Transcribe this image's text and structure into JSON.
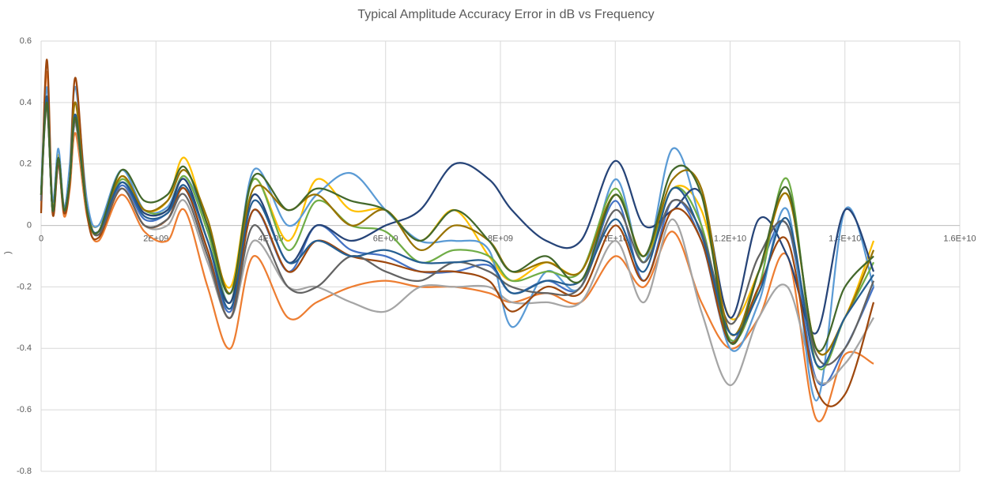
{
  "chart_data": {
    "type": "line",
    "title": "Typical Amplitude Accuracy Error in dB vs Frequency",
    "y_label": ")",
    "x": [
      0,
      100000000,
      200000000,
      300000000,
      400000000,
      500000000,
      600000000,
      800000000,
      1000000000,
      1400000000,
      1800000000,
      2200000000,
      2500000000,
      2900000000,
      3300000000,
      3700000000,
      4300000000,
      4800000000,
      5400000000,
      6000000000,
      6600000000,
      7200000000,
      7800000000,
      8200000000,
      8800000000,
      9400000000,
      10000000000,
      10500000000,
      11000000000,
      11500000000,
      12000000000,
      12500000000,
      13000000000,
      13500000000,
      14000000000,
      14500000000
    ],
    "xlim": [
      0,
      16000000000
    ],
    "xticks": [
      0,
      {
        "value": 2000000000,
        "label": "2E+09"
      },
      {
        "value": 4000000000,
        "label": "4E+09"
      },
      {
        "value": 6000000000,
        "label": "6E+09"
      },
      {
        "value": 8000000000,
        "label": "8E+09"
      },
      {
        "value": 10000000000,
        "label": "1E+10"
      },
      {
        "value": 12000000000,
        "label": "1.2E+10"
      },
      {
        "value": 14000000000,
        "label": "1.4E+10"
      },
      {
        "value": 16000000000,
        "label": "1.6E+10"
      }
    ],
    "ylim": [
      -0.8,
      0.6
    ],
    "yticks": [
      0.6,
      0.4,
      0.2,
      0,
      -0.2,
      -0.4,
      -0.6,
      -0.8
    ],
    "grid": true,
    "series": [
      {
        "color": "#4472c4",
        "values": [
          0.08,
          0.42,
          0.06,
          0.2,
          0.04,
          0.14,
          0.33,
          0.06,
          -0.03,
          0.13,
          0.02,
          0.04,
          0.12,
          -0.08,
          -0.28,
          0.05,
          -0.15,
          0.0,
          -0.08,
          -0.1,
          -0.15,
          -0.15,
          -0.13,
          -0.22,
          -0.18,
          -0.2,
          0.08,
          -0.18,
          0.08,
          -0.05,
          -0.38,
          -0.15,
          0.0,
          -0.5,
          -0.4,
          -0.2
        ]
      },
      {
        "color": "#ed7d31",
        "values": [
          0.05,
          0.5,
          0.04,
          0.2,
          0.03,
          0.12,
          0.3,
          0.03,
          -0.05,
          0.1,
          -0.02,
          -0.05,
          0.05,
          -0.2,
          -0.4,
          -0.1,
          -0.3,
          -0.25,
          -0.2,
          -0.18,
          -0.2,
          -0.2,
          -0.22,
          -0.25,
          -0.22,
          -0.25,
          -0.1,
          -0.2,
          -0.02,
          -0.25,
          -0.4,
          -0.3,
          -0.1,
          -0.63,
          -0.42,
          -0.45
        ]
      },
      {
        "color": "#a5a5a5",
        "values": [
          0.1,
          0.38,
          0.05,
          0.2,
          0.05,
          0.15,
          0.33,
          0.05,
          -0.03,
          0.12,
          0.0,
          0.0,
          0.08,
          -0.12,
          -0.3,
          -0.05,
          -0.2,
          -0.2,
          -0.25,
          -0.28,
          -0.2,
          -0.2,
          -0.2,
          -0.25,
          -0.25,
          -0.25,
          -0.05,
          -0.25,
          0.02,
          -0.28,
          -0.52,
          -0.3,
          -0.2,
          -0.5,
          -0.45,
          -0.3
        ]
      },
      {
        "color": "#ffc000",
        "values": [
          0.1,
          0.4,
          0.06,
          0.23,
          0.06,
          0.16,
          0.36,
          0.06,
          0.0,
          0.16,
          0.05,
          0.08,
          0.22,
          0.0,
          -0.2,
          0.15,
          -0.05,
          0.15,
          0.05,
          0.05,
          -0.05,
          0.05,
          -0.1,
          -0.18,
          -0.12,
          -0.15,
          0.1,
          -0.1,
          0.12,
          0.05,
          -0.3,
          -0.15,
          0.1,
          -0.4,
          -0.3,
          -0.05
        ]
      },
      {
        "color": "#5b9bd5",
        "values": [
          0.12,
          0.45,
          0.08,
          0.25,
          0.06,
          0.2,
          0.45,
          0.08,
          0.0,
          0.18,
          0.05,
          0.06,
          0.16,
          0.0,
          -0.25,
          0.18,
          0.0,
          0.1,
          0.17,
          0.05,
          -0.05,
          -0.05,
          -0.08,
          -0.33,
          -0.15,
          -0.2,
          0.15,
          -0.12,
          0.25,
          0.0,
          -0.4,
          -0.25,
          0.05,
          -0.57,
          0.05,
          -0.2
        ]
      },
      {
        "color": "#70ad47",
        "values": [
          0.1,
          0.4,
          0.05,
          0.22,
          0.05,
          0.15,
          0.35,
          0.05,
          -0.02,
          0.15,
          0.05,
          0.05,
          0.16,
          -0.02,
          -0.25,
          0.15,
          -0.08,
          0.08,
          0.0,
          -0.02,
          -0.12,
          -0.08,
          -0.1,
          -0.18,
          -0.15,
          -0.15,
          0.12,
          -0.12,
          0.12,
          0.0,
          -0.37,
          -0.2,
          0.15,
          -0.45,
          -0.3,
          -0.12
        ]
      },
      {
        "color": "#264478",
        "values": [
          0.1,
          0.4,
          0.05,
          0.22,
          0.05,
          0.15,
          0.35,
          0.05,
          -0.02,
          0.14,
          0.04,
          0.05,
          0.15,
          -0.05,
          -0.25,
          0.1,
          -0.12,
          0.0,
          -0.05,
          0.0,
          0.05,
          0.2,
          0.15,
          0.05,
          -0.05,
          -0.05,
          0.21,
          0.0,
          0.05,
          0.1,
          -0.3,
          0.02,
          -0.1,
          -0.35,
          0.05,
          -0.15
        ]
      },
      {
        "color": "#9e480e",
        "values": [
          0.04,
          0.54,
          0.04,
          0.2,
          0.04,
          0.14,
          0.48,
          0.04,
          -0.04,
          0.12,
          0.0,
          0.02,
          0.12,
          -0.08,
          -0.3,
          0.05,
          -0.15,
          -0.05,
          -0.1,
          -0.12,
          -0.15,
          -0.15,
          -0.18,
          -0.28,
          -0.2,
          -0.22,
          0.0,
          -0.18,
          0.05,
          -0.05,
          -0.38,
          -0.2,
          -0.05,
          -0.53,
          -0.55,
          -0.25
        ]
      },
      {
        "color": "#636363",
        "values": [
          0.08,
          0.4,
          0.05,
          0.21,
          0.05,
          0.15,
          0.34,
          0.05,
          -0.03,
          0.12,
          0.0,
          0.02,
          0.1,
          -0.1,
          -0.3,
          0.0,
          -0.2,
          -0.2,
          -0.1,
          -0.15,
          -0.18,
          -0.12,
          -0.15,
          -0.2,
          -0.22,
          -0.2,
          0.05,
          -0.12,
          0.08,
          -0.02,
          -0.32,
          -0.1,
          0.0,
          -0.42,
          -0.4,
          -0.18
        ]
      },
      {
        "color": "#997300",
        "values": [
          0.1,
          0.42,
          0.05,
          0.22,
          0.05,
          0.15,
          0.4,
          0.05,
          -0.02,
          0.16,
          0.05,
          0.08,
          0.18,
          0.02,
          -0.22,
          0.12,
          0.05,
          0.1,
          0.0,
          0.05,
          -0.08,
          0.0,
          -0.05,
          -0.15,
          -0.12,
          -0.15,
          0.1,
          -0.1,
          0.15,
          0.12,
          -0.35,
          -0.15,
          0.1,
          -0.4,
          -0.3,
          -0.08
        ]
      },
      {
        "color": "#255e91",
        "values": [
          0.1,
          0.42,
          0.05,
          0.22,
          0.05,
          0.15,
          0.36,
          0.05,
          -0.02,
          0.14,
          0.03,
          0.04,
          0.13,
          -0.05,
          -0.27,
          0.08,
          -0.12,
          -0.05,
          -0.1,
          -0.08,
          -0.12,
          -0.12,
          -0.12,
          -0.22,
          -0.18,
          -0.18,
          0.02,
          -0.15,
          0.12,
          -0.03,
          -0.35,
          -0.22,
          0.02,
          -0.45,
          -0.3,
          -0.16
        ]
      },
      {
        "color": "#43682b",
        "values": [
          0.1,
          0.4,
          0.05,
          0.22,
          0.05,
          0.15,
          0.35,
          0.05,
          -0.02,
          0.18,
          0.08,
          0.1,
          0.19,
          0.0,
          -0.22,
          0.16,
          0.05,
          0.12,
          0.08,
          0.05,
          -0.05,
          0.05,
          -0.05,
          -0.15,
          -0.1,
          -0.18,
          0.1,
          -0.1,
          0.18,
          0.1,
          -0.38,
          -0.15,
          0.12,
          -0.4,
          -0.2,
          -0.1
        ]
      }
    ]
  }
}
